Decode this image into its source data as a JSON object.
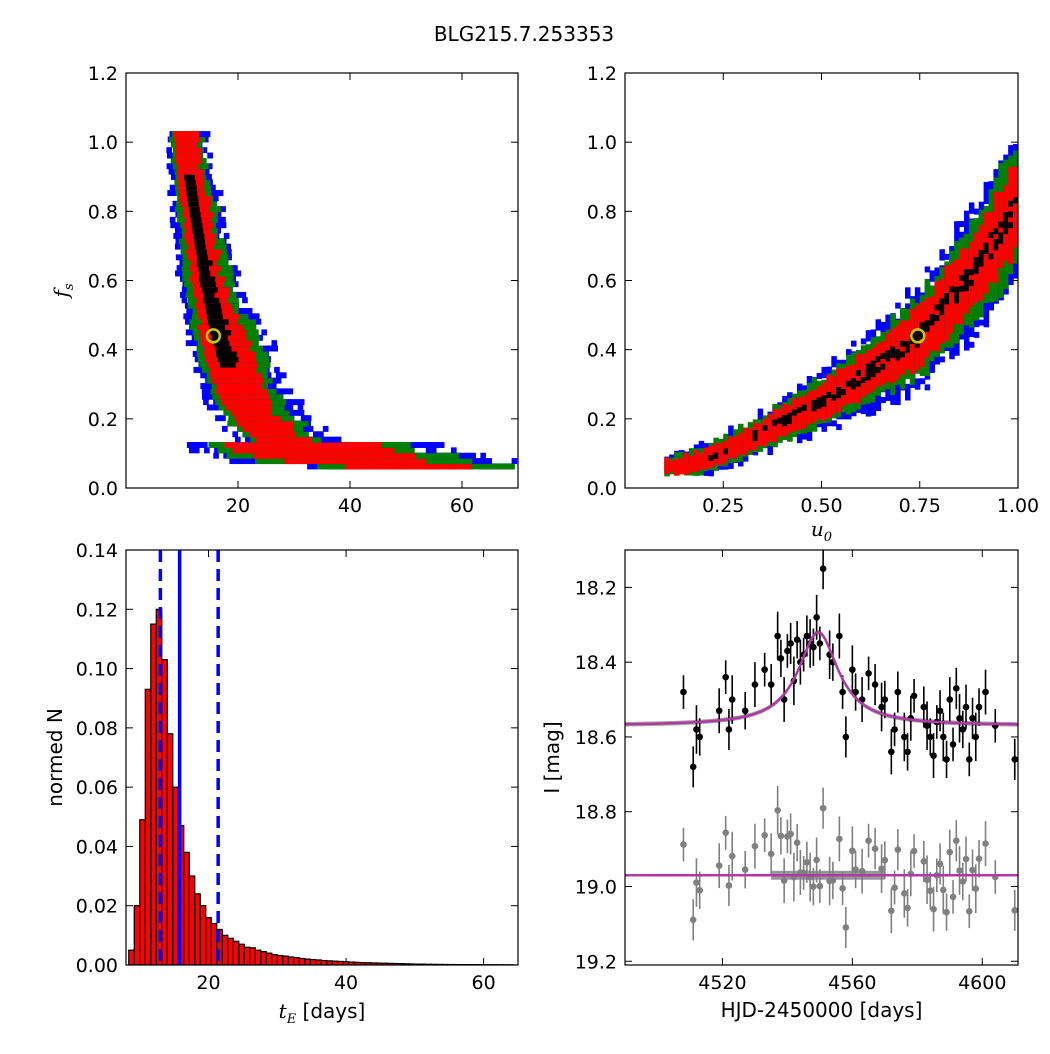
{
  "figure": {
    "title": "BLG215.7.253353"
  },
  "colors": {
    "contour_outer": "#0000ff",
    "contour_mid": "#008000",
    "contour_inner": "#ff0000",
    "contour_core": "#000000",
    "best_fit_marker": "#c8c800",
    "hist_fill": "#ff0000",
    "interval_line": "#0000ff",
    "model_curve": "#b03aa5",
    "model_band": "#8c8c8c",
    "data_points": "#000000",
    "residual_points": "#808080"
  },
  "chart_data": [
    {
      "id": "tE-fs",
      "type": "heatmap",
      "title": "",
      "xlabel": "",
      "ylabel": "f_s",
      "xlim": [
        0,
        70
      ],
      "ylim": [
        0,
        1.2
      ],
      "xticks": [
        "20",
        "40",
        "60"
      ],
      "yticks": [
        "0.0",
        "0.2",
        "0.4",
        "0.6",
        "0.8",
        "1.0",
        "1.2"
      ],
      "levels": [
        "outer",
        "mid",
        "inner",
        "core"
      ],
      "ridge": [
        [
          10.2,
          1.02
        ],
        [
          11,
          0.9
        ],
        [
          12.5,
          0.75
        ],
        [
          14,
          0.6
        ],
        [
          16,
          0.45
        ],
        [
          18,
          0.33
        ],
        [
          21,
          0.22
        ],
        [
          25,
          0.15
        ],
        [
          30,
          0.1
        ],
        [
          38,
          0.07
        ],
        [
          48,
          0.055
        ],
        [
          60,
          0.045
        ],
        [
          66,
          0.045
        ]
      ],
      "best_fit": [
        15.6,
        0.44
      ]
    },
    {
      "id": "u0-fs",
      "type": "heatmap",
      "title": "",
      "xlabel": "u_0",
      "ylabel": "",
      "xlim": [
        0.0,
        1.0
      ],
      "ylim": [
        0,
        1.2
      ],
      "xticks": [
        "0.25",
        "0.50",
        "0.75",
        "1.00"
      ],
      "yticks": [
        "0.0",
        "0.2",
        "0.4",
        "0.6",
        "0.8",
        "1.0",
        "1.2"
      ],
      "levels": [
        "outer",
        "mid",
        "inner",
        "core"
      ],
      "ridge": [
        [
          0.1,
          0.05
        ],
        [
          0.2,
          0.08
        ],
        [
          0.3,
          0.13
        ],
        [
          0.4,
          0.19
        ],
        [
          0.5,
          0.25
        ],
        [
          0.6,
          0.32
        ],
        [
          0.7,
          0.4
        ],
        [
          0.75,
          0.44
        ],
        [
          0.8,
          0.51
        ],
        [
          0.9,
          0.65
        ],
        [
          1.0,
          0.83
        ]
      ],
      "best_fit": [
        0.745,
        0.44
      ]
    },
    {
      "id": "tE-hist",
      "type": "bar",
      "title": "",
      "xlabel": "t_E",
      "xlabel_suffix": " [days]",
      "ylabel": "normed N",
      "xlim": [
        8,
        65
      ],
      "ylim": [
        0,
        0.14
      ],
      "xticks": [
        "20",
        "40",
        "60"
      ],
      "yticks": [
        "0.00",
        "0.02",
        "0.04",
        "0.06",
        "0.08",
        "0.10",
        "0.12",
        "0.14"
      ],
      "bin_width": 0.8,
      "bin_start": 8.4,
      "values": [
        0.005,
        0.02,
        0.049,
        0.093,
        0.115,
        0.12,
        0.103,
        0.078,
        0.06,
        0.047,
        0.038,
        0.03,
        0.024,
        0.02,
        0.016,
        0.014,
        0.012,
        0.01,
        0.009,
        0.008,
        0.007,
        0.006,
        0.0058,
        0.005,
        0.0045,
        0.004,
        0.0035,
        0.0032,
        0.003,
        0.0027,
        0.0025,
        0.0022,
        0.002,
        0.0018,
        0.0017,
        0.0015,
        0.0014,
        0.0013,
        0.0012,
        0.0011,
        0.001,
        0.0009,
        0.0008,
        0.00075,
        0.0007,
        0.00065,
        0.0006,
        0.00055,
        0.0005,
        0.00045,
        0.0004,
        0.00035,
        0.0003,
        0.0003,
        0.00025,
        0.00022,
        0.0002,
        0.00018,
        0.00016,
        0.00015,
        0.00014,
        0.00013,
        0.00012,
        0.00011,
        0.0001,
        0.0001,
        9e-05,
        8e-05,
        8e-05,
        7e-05
      ],
      "median": 15.8,
      "interval": [
        13.0,
        21.4
      ]
    },
    {
      "id": "lightcurve",
      "type": "scatter",
      "title": "",
      "xlabel": "HJD-2450000 [days]",
      "ylabel": "I [mag]",
      "xlim": [
        4490,
        4611
      ],
      "ylim": [
        19.21,
        18.1
      ],
      "y_inverted": true,
      "xticks": [
        "4520",
        "4560",
        "4600"
      ],
      "yticks": [
        "18.2",
        "18.4",
        "18.6",
        "18.8",
        "19.0",
        "19.2"
      ],
      "model": {
        "t0": 4549.5,
        "baseline": 18.57,
        "peak": 18.32,
        "width": 7.5
      },
      "residual_baseline": 18.97,
      "data": [
        [
          4508,
          18.48
        ],
        [
          4511,
          18.68
        ],
        [
          4512,
          18.58
        ],
        [
          4513,
          18.6
        ],
        [
          4519,
          18.53
        ],
        [
          4521,
          18.44
        ],
        [
          4522,
          18.58
        ],
        [
          4523,
          18.5
        ],
        [
          4527,
          18.53
        ],
        [
          4530,
          18.46
        ],
        [
          4533,
          18.42
        ],
        [
          4535,
          18.46
        ],
        [
          4537,
          18.33
        ],
        [
          4538,
          18.39
        ],
        [
          4539,
          18.5
        ],
        [
          4540,
          18.37
        ],
        [
          4541,
          18.35
        ],
        [
          4542,
          18.45
        ],
        [
          4543,
          18.34
        ],
        [
          4544,
          18.4
        ],
        [
          4545,
          18.38
        ],
        [
          4546,
          18.33
        ],
        [
          4547,
          18.35
        ],
        [
          4548,
          18.36
        ],
        [
          4549,
          18.28
        ],
        [
          4550,
          18.35
        ],
        [
          4551,
          18.15
        ],
        [
          4553,
          18.38
        ],
        [
          4554,
          18.4
        ],
        [
          4556,
          18.33
        ],
        [
          4557,
          18.48
        ],
        [
          4558,
          18.6
        ],
        [
          4560,
          18.42
        ],
        [
          4561,
          18.48
        ],
        [
          4563,
          18.5
        ],
        [
          4565,
          18.43
        ],
        [
          4567,
          18.46
        ],
        [
          4569,
          18.52
        ],
        [
          4570,
          18.5
        ],
        [
          4572,
          18.64
        ],
        [
          4573,
          18.58
        ],
        [
          4574,
          18.48
        ],
        [
          4576,
          18.6
        ],
        [
          4577,
          18.64
        ],
        [
          4578,
          18.55
        ],
        [
          4579,
          18.49
        ],
        [
          4582,
          18.52
        ],
        [
          4583,
          18.57
        ],
        [
          4584,
          18.6
        ],
        [
          4585,
          18.65
        ],
        [
          4586,
          18.56
        ],
        [
          4587,
          18.53
        ],
        [
          4588,
          18.6
        ],
        [
          4589,
          18.66
        ],
        [
          4590,
          18.5
        ],
        [
          4591,
          18.62
        ],
        [
          4592,
          18.47
        ],
        [
          4593,
          18.55
        ],
        [
          4594,
          18.58
        ],
        [
          4595,
          18.52
        ],
        [
          4596,
          18.66
        ],
        [
          4597,
          18.55
        ],
        [
          4598,
          18.6
        ],
        [
          4599,
          18.52
        ],
        [
          4601,
          18.48
        ],
        [
          4604,
          18.57
        ],
        [
          4610,
          18.66
        ]
      ]
    }
  ]
}
